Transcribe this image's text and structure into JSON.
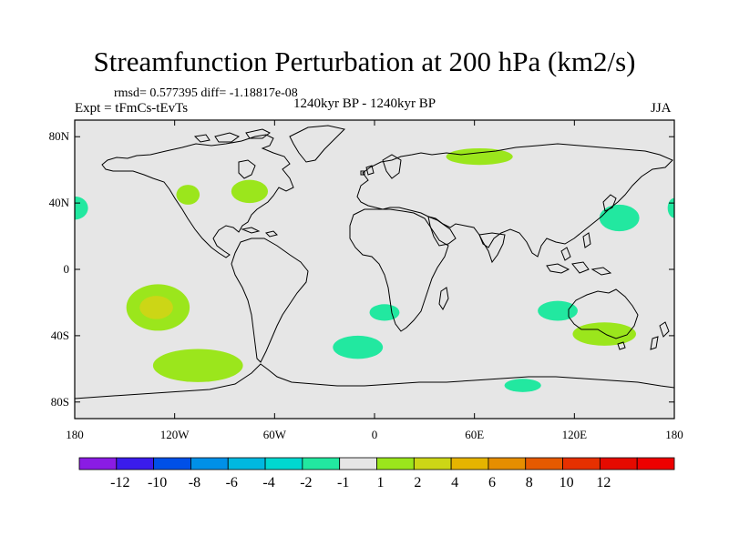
{
  "title": "Streamfunction Perturbation at 200 hPa (km2/s)",
  "stats": "rmsd= 0.577395 diff= -1.18817e-08",
  "experiment": "Expt = tFmCs-tEvTs",
  "period": "1240kyr BP - 1240kyr BP",
  "season": "JJA",
  "map": {
    "background_color": "#e6e6e6",
    "lat_ticks": [
      {
        "label": "80N",
        "value": 80
      },
      {
        "label": "40N",
        "value": 40
      },
      {
        "label": "0",
        "value": 0
      },
      {
        "label": "40S",
        "value": -40
      },
      {
        "label": "80S",
        "value": -80
      }
    ],
    "lon_ticks": [
      {
        "label": "180",
        "value": -180
      },
      {
        "label": "120W",
        "value": -120
      },
      {
        "label": "60W",
        "value": -60
      },
      {
        "label": "0",
        "value": 0
      },
      {
        "label": "60E",
        "value": 60
      },
      {
        "label": "120E",
        "value": 120
      },
      {
        "label": "180",
        "value": 180
      }
    ],
    "anomalies": [
      {
        "name": "n-pacific-west-edge",
        "lon": -180,
        "lat": 37,
        "rlon": 8,
        "rlat": 7,
        "color": "#22e8a0"
      },
      {
        "name": "n-pacific-east-edge",
        "lon": 180,
        "lat": 37,
        "rlon": 4,
        "rlat": 6,
        "color": "#22e8a0"
      },
      {
        "name": "w-north-america",
        "lon": -112,
        "lat": 45,
        "rlon": 7,
        "rlat": 6,
        "color": "#9be61c"
      },
      {
        "name": "ne-north-america",
        "lon": -75,
        "lat": 47,
        "rlon": 11,
        "rlat": 7,
        "color": "#9be61c"
      },
      {
        "name": "siberia",
        "lon": 63,
        "lat": 68,
        "rlon": 20,
        "rlat": 5,
        "color": "#9be61c"
      },
      {
        "name": "nw-pacific",
        "lon": 147,
        "lat": 31,
        "rlon": 12,
        "rlat": 8,
        "color": "#22e8a0"
      },
      {
        "name": "ne-australia-sea",
        "lon": 110,
        "lat": -25,
        "rlon": 12,
        "rlat": 6,
        "color": "#22e8a0"
      },
      {
        "name": "s-atlantic-a",
        "lon": 6,
        "lat": -26,
        "rlon": 9,
        "rlat": 5,
        "color": "#22e8a0"
      },
      {
        "name": "s-atlantic-b",
        "lon": -10,
        "lat": -47,
        "rlon": 15,
        "rlat": 7,
        "color": "#22e8a0"
      },
      {
        "name": "s-pacific-outer",
        "lon": -130,
        "lat": -23,
        "rlon": 19,
        "rlat": 14,
        "color": "#9be61c"
      },
      {
        "name": "s-pacific-inner",
        "lon": -131,
        "lat": -23,
        "rlon": 10,
        "rlat": 7,
        "color": "#ccd616"
      },
      {
        "name": "s-pacific-south",
        "lon": -106,
        "lat": -58,
        "rlon": 27,
        "rlat": 10,
        "color": "#9be61c"
      },
      {
        "name": "australia-south",
        "lon": 138,
        "lat": -39,
        "rlon": 19,
        "rlat": 7,
        "color": "#9be61c"
      },
      {
        "name": "southern-ocean",
        "lon": 89,
        "lat": -70,
        "rlon": 11,
        "rlat": 4,
        "color": "#22e8a0"
      }
    ]
  },
  "colorbar": {
    "colors": [
      "#8a1ce4",
      "#3a1cec",
      "#0050e8",
      "#0090e8",
      "#00b8e0",
      "#00d8d0",
      "#22e8a0",
      "#e6e6e6",
      "#9be61c",
      "#ccd616",
      "#e6b400",
      "#e68e00",
      "#e65a00",
      "#e63000",
      "#e60a00",
      "#ee0000"
    ],
    "labels": [
      "-12",
      "-10",
      "-8",
      "-6",
      "-4",
      "-2",
      "-1",
      "1",
      "2",
      "4",
      "6",
      "8",
      "10",
      "12"
    ]
  }
}
